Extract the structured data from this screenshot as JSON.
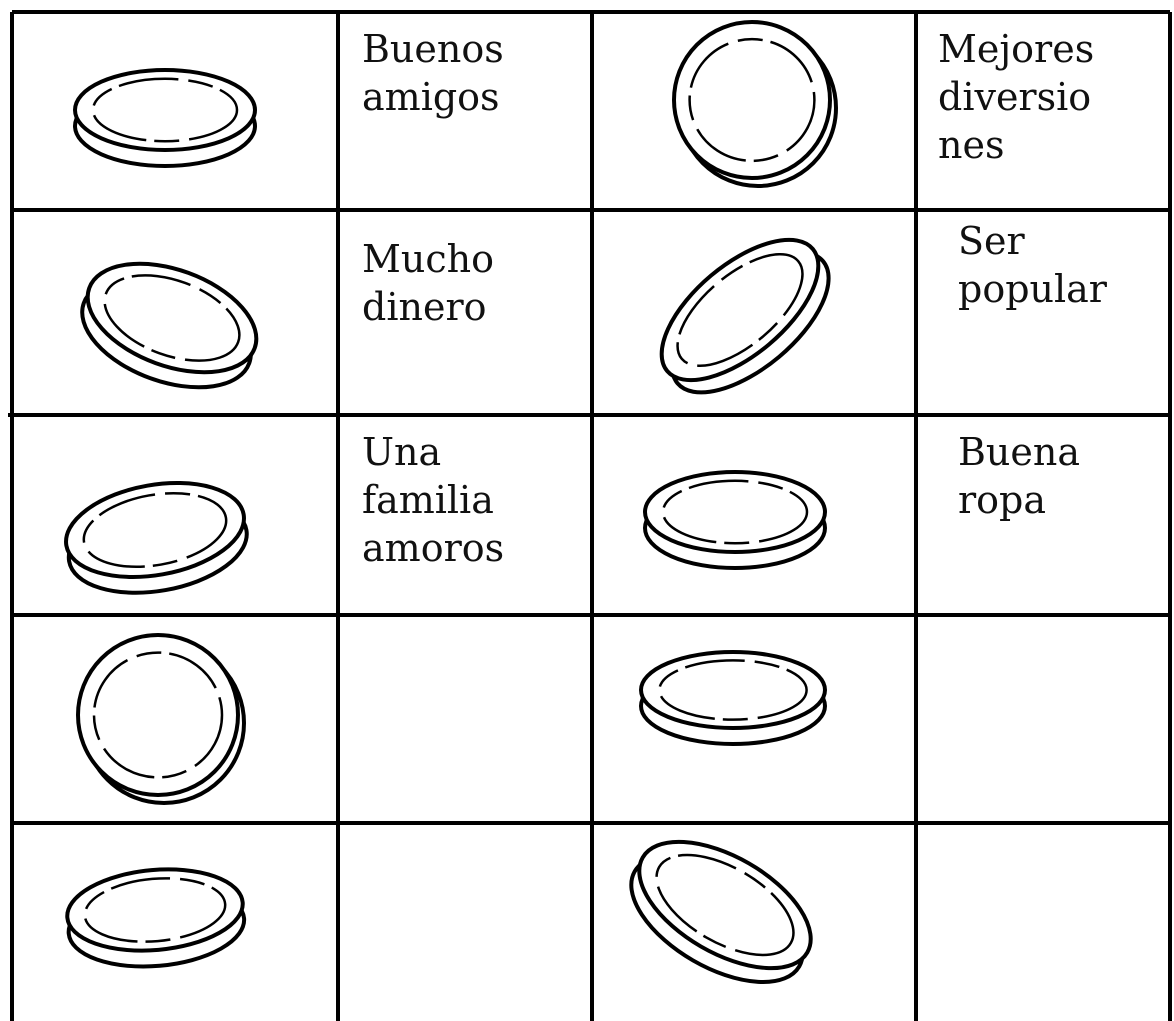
{
  "table": {
    "rows": [
      [
        [
          "Buenos",
          "amigos"
        ],
        [
          "Mejores",
          "diversio",
          "nes"
        ]
      ],
      [
        [
          "Mucho",
          "dinero"
        ],
        [
          "Ser",
          "popular"
        ]
      ],
      [
        [
          "Una",
          "familia",
          "amoros"
        ],
        [
          "Buena",
          "ropa"
        ]
      ]
    ]
  }
}
